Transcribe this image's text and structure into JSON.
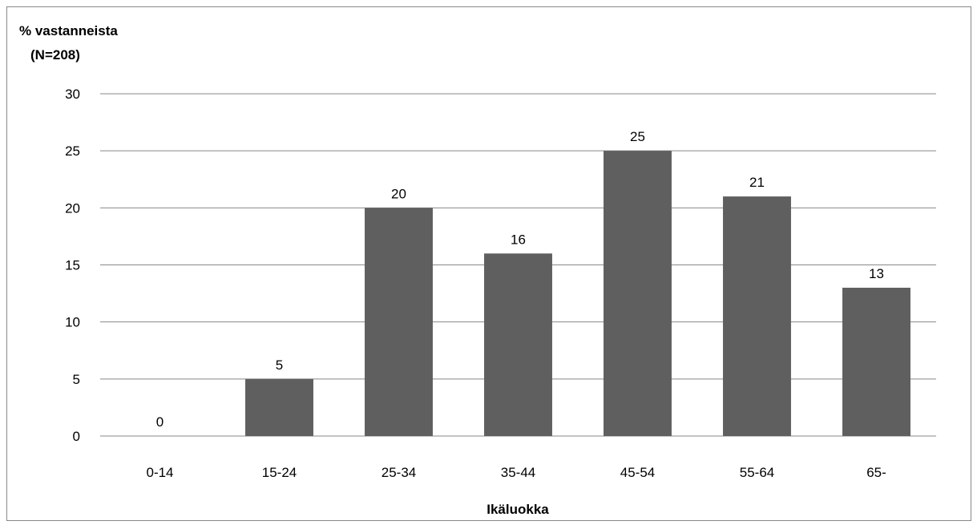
{
  "chart_data": {
    "type": "bar",
    "ylabel": [
      "% vastanneista",
      "(N=208)"
    ],
    "xlabel": "Ikäluokka",
    "categories": [
      "0-14",
      "15-24",
      "25-34",
      "35-44",
      "45-54",
      "55-64",
      "65-"
    ],
    "values": [
      0,
      5,
      20,
      16,
      25,
      21,
      13
    ],
    "data_labels": [
      "0",
      "5",
      "20",
      "16",
      "25",
      "21",
      "13"
    ],
    "ylim": [
      0,
      30
    ],
    "yticks": [
      0,
      5,
      10,
      15,
      20,
      25,
      30
    ],
    "grid": true,
    "legend": "none",
    "bar_color": "#5f5f5f",
    "grid_color": "#888888"
  }
}
